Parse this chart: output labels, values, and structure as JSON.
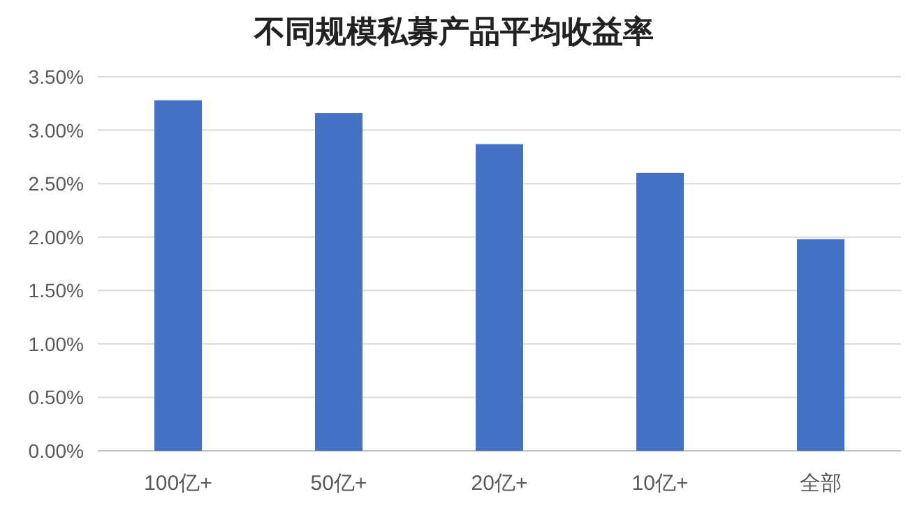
{
  "chart_data": {
    "type": "bar",
    "title": "不同规模私募产品平均收益率",
    "categories": [
      "100亿+",
      "50亿+",
      "20亿+",
      "10亿+",
      "全部"
    ],
    "values": [
      3.28,
      3.16,
      2.87,
      2.6,
      1.98
    ],
    "color": "#4472c4",
    "ylim": [
      0,
      3.5
    ],
    "yticks": [
      {
        "value": 0,
        "label": "0.00%"
      },
      {
        "value": 0.5,
        "label": "0.50%"
      },
      {
        "value": 1,
        "label": "1.00%"
      },
      {
        "value": 1.5,
        "label": "1.50%"
      },
      {
        "value": 2,
        "label": "2.00%"
      },
      {
        "value": 2.5,
        "label": "2.50%"
      },
      {
        "value": 3,
        "label": "3.00%"
      },
      {
        "value": 3.5,
        "label": "3.50%"
      }
    ],
    "grid": "y"
  }
}
